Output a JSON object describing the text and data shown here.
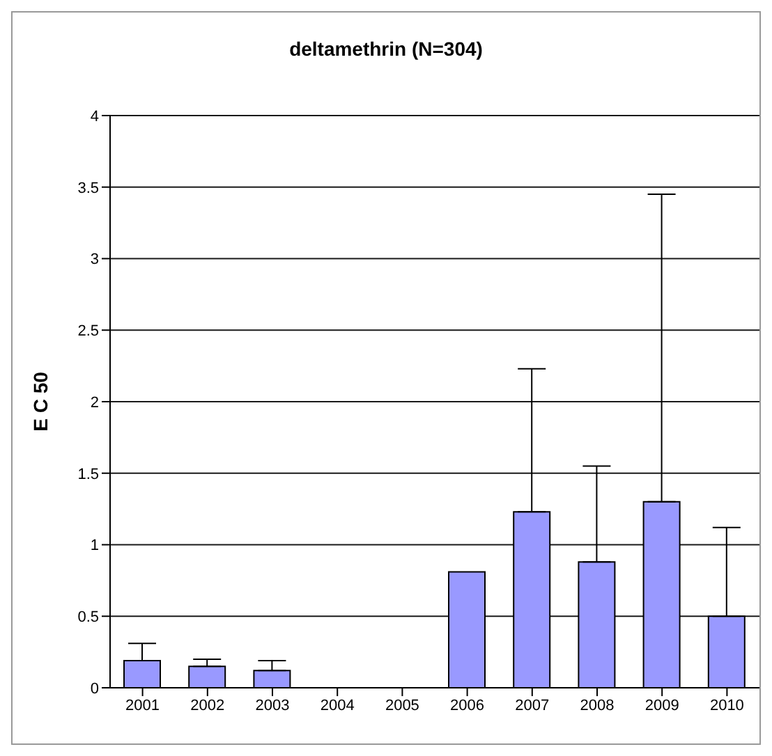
{
  "chart_data": {
    "type": "bar",
    "title": "deltamethrin (N=304)",
    "ylabel": "E C 50",
    "categories": [
      "2001",
      "2002",
      "2003",
      "2004",
      "2005",
      "2006",
      "2007",
      "2008",
      "2009",
      "2010"
    ],
    "values": [
      0.19,
      0.15,
      0.12,
      null,
      null,
      0.81,
      1.23,
      0.88,
      1.3,
      0.5
    ],
    "errors": [
      [
        0.19,
        0.31
      ],
      [
        0.15,
        0.2
      ],
      [
        0.12,
        0.19
      ],
      null,
      null,
      null,
      [
        1.23,
        2.23
      ],
      [
        0.88,
        1.55
      ],
      [
        1.3,
        3.45
      ],
      [
        0.5,
        1.12
      ]
    ],
    "color": "#9999ff",
    "ylim": [
      0,
      4
    ],
    "yticks": [
      0,
      0.5,
      1,
      1.5,
      2,
      2.5,
      3,
      3.5,
      4
    ],
    "grid": "y"
  }
}
